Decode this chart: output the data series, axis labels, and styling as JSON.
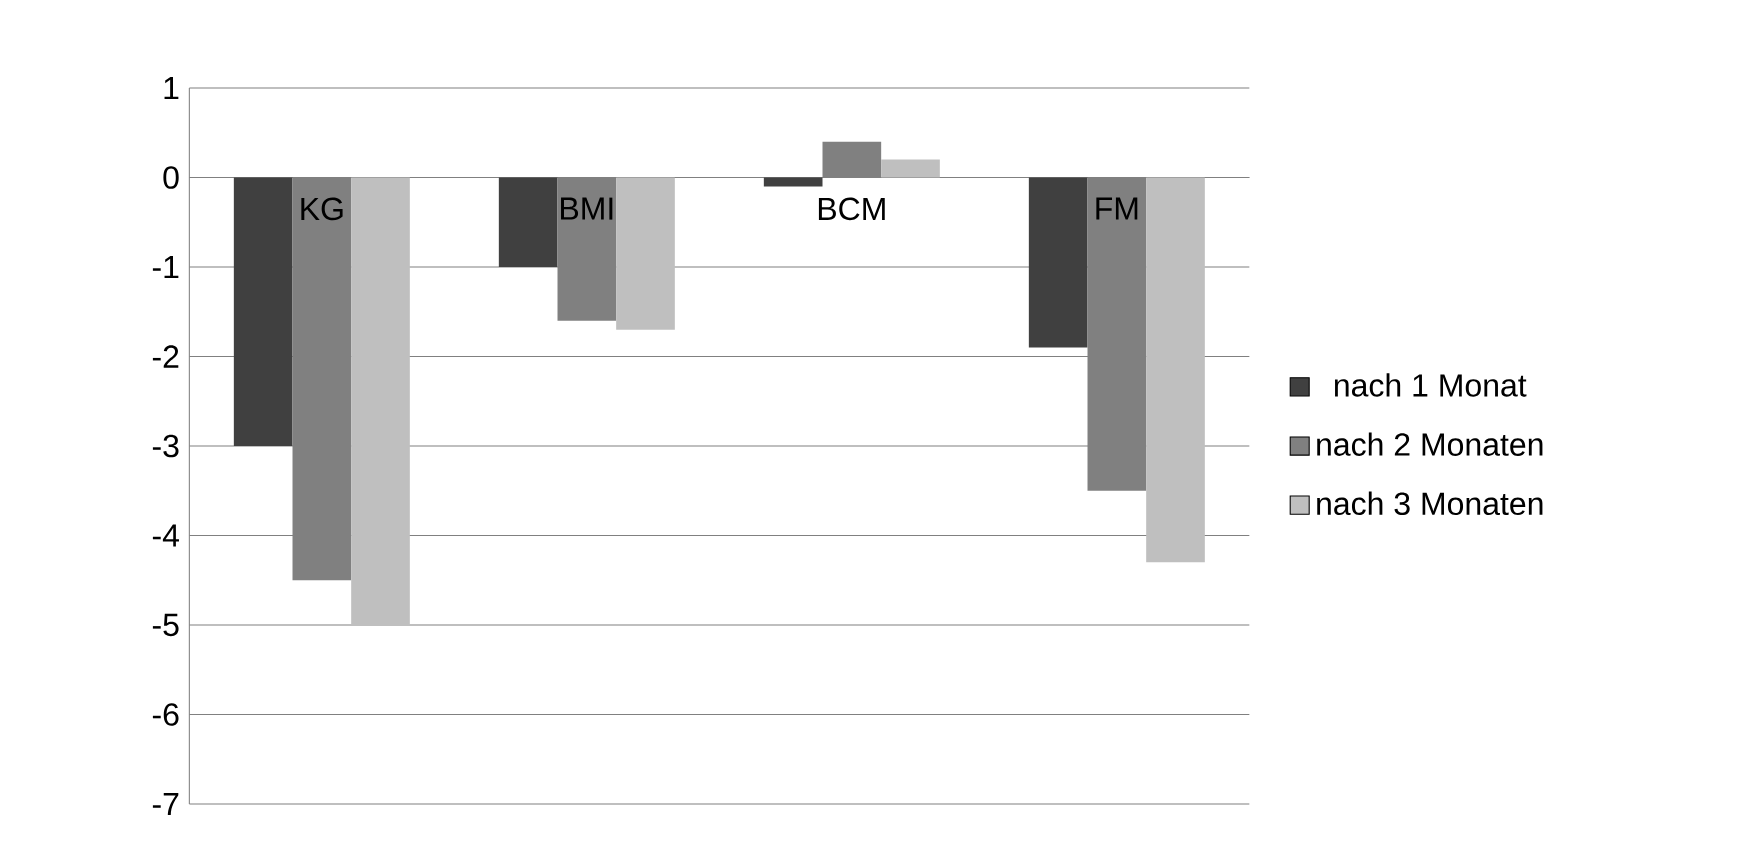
{
  "chart_data": {
    "type": "bar",
    "categories": [
      "KG",
      "BMI",
      "BCM",
      "FM"
    ],
    "series": [
      {
        "name": "nach 1 Monat",
        "color": "#404040",
        "values": [
          -3,
          -1,
          -0.1,
          -1.9
        ]
      },
      {
        "name": "nach 2 Monaten",
        "color": "#808080",
        "values": [
          -4.5,
          -1.6,
          0.4,
          -3.5
        ]
      },
      {
        "name": "nach 3 Monaten",
        "color": "#bfbfbf",
        "values": [
          -5,
          -1.7,
          0.2,
          -4.3
        ]
      }
    ],
    "ylim": [
      -7,
      1
    ],
    "yticks": [
      -7,
      -6,
      -5,
      -4,
      -3,
      -2,
      -1,
      0,
      1
    ],
    "grid": "y",
    "legend": "right"
  }
}
